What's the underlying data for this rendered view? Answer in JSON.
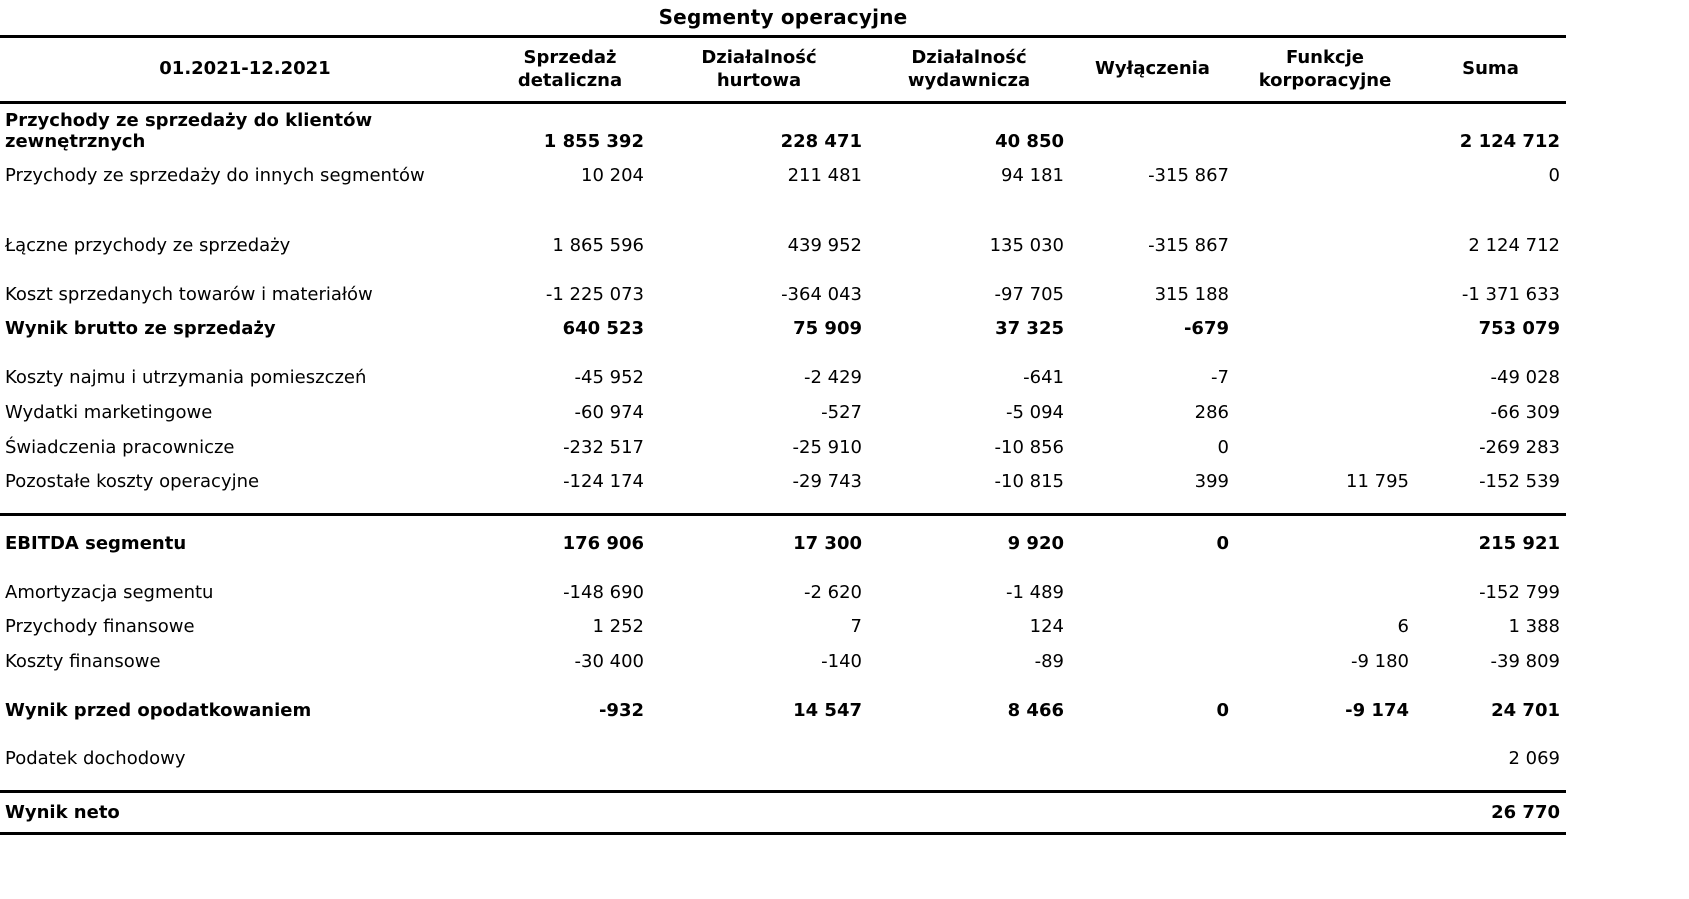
{
  "title": "Segmenty operacyjne",
  "table": {
    "period_header": "01.2021-12.2021",
    "columns": [
      "Sprzedaż\ndetaliczna",
      "Działalność\nhurtowa",
      "Działalność\nwydawnicza",
      "Wyłączenia",
      "Funkcje\nkorporacyjne",
      "Suma"
    ],
    "sections": [
      {
        "name": "przychody-segmentow",
        "rows": [
          {
            "label": "Przychody ze sprzedaży do klientów zewnętrznych",
            "bold": true,
            "values": [
              "1 855 392",
              "228 471",
              "40 850",
              "",
              "",
              "2 124 712"
            ]
          },
          {
            "label": "Przychody ze sprzedaży do innych segmentów",
            "values": [
              "10 204",
              "211 481",
              "94 181",
              "-315 867",
              "",
              "0"
            ]
          }
        ]
      },
      {
        "name": "laczne-przychody",
        "gap": "large",
        "rows": [
          {
            "label": "Łączne przychody ze sprzedaży",
            "values": [
              "1 865 596",
              "439 952",
              "135 030",
              "-315 867",
              "",
              "2 124 712"
            ]
          }
        ]
      },
      {
        "name": "wynik-brutto",
        "rows": [
          {
            "label": "Koszt sprzedanych towarów i materiałów",
            "values": [
              "-1 225 073",
              "-364 043",
              "-97 705",
              "315 188",
              "",
              "-1 371 633"
            ]
          },
          {
            "label": "Wynik brutto ze sprzedaży",
            "bold": true,
            "values": [
              "640 523",
              "75 909",
              "37 325",
              "-679",
              "",
              "753 079"
            ]
          }
        ]
      },
      {
        "name": "koszty-operacyjne",
        "rows": [
          {
            "label": "Koszty najmu i utrzymania pomieszczeń",
            "values": [
              "-45 952",
              "-2 429",
              "-641",
              "-7",
              "",
              "-49 028"
            ]
          },
          {
            "label": "Wydatki marketingowe",
            "values": [
              "-60 974",
              "-527",
              "-5 094",
              "286",
              "",
              "-66 309"
            ]
          },
          {
            "label": "Świadczenia pracownicze",
            "values": [
              "-232 517",
              "-25 910",
              "-10 856",
              "0",
              "",
              "-269 283"
            ]
          },
          {
            "label": "Pozostałe koszty operacyjne",
            "values": [
              "-124 174",
              "-29 743",
              "-10 815",
              "399",
              "11 795",
              "-152 539"
            ]
          }
        ]
      },
      {
        "name": "ebitda",
        "rule_top": true,
        "rows": [
          {
            "label": "EBITDA segmentu",
            "bold": true,
            "values": [
              "176 906",
              "17 300",
              "9 920",
              "0",
              "",
              "215 921"
            ]
          }
        ]
      },
      {
        "name": "pozycje-finansowe",
        "rows": [
          {
            "label": "Amortyzacja segmentu",
            "values": [
              "-148 690",
              "-2 620",
              "-1 489",
              "",
              "",
              "-152 799"
            ]
          },
          {
            "label": "Przychody finansowe",
            "values": [
              "1 252",
              "7",
              "124",
              "",
              "6",
              "1 388"
            ]
          },
          {
            "label": "Koszty finansowe",
            "values": [
              "-30 400",
              "-140",
              "-89",
              "",
              "-9 180",
              "-39 809"
            ]
          }
        ]
      },
      {
        "name": "wynik-przed-opodatkowaniem",
        "rows": [
          {
            "label": "Wynik przed opodatkowaniem",
            "bold": true,
            "values": [
              "-932",
              "14 547",
              "8 466",
              "0",
              "-9 174",
              "24 701"
            ]
          }
        ]
      },
      {
        "name": "podatek-dochodowy",
        "rows": [
          {
            "label": "Podatek dochodowy",
            "values": [
              "",
              "",
              "",
              "",
              "",
              "2 069"
            ]
          }
        ]
      },
      {
        "name": "wynik-neto",
        "rule_top": true,
        "rows": [
          {
            "label": "Wynik neto",
            "bold": true,
            "values": [
              "",
              "",
              "",
              "",
              "",
              "26 770"
            ]
          }
        ]
      }
    ]
  }
}
